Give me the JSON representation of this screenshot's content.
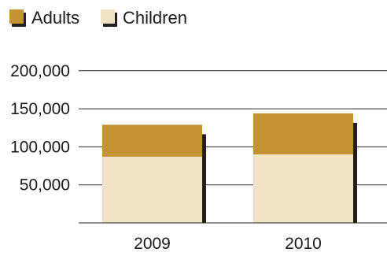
{
  "chart_data": {
    "type": "bar",
    "stacked": true,
    "categories": [
      "2009",
      "2010"
    ],
    "series": [
      {
        "name": "Children",
        "values": [
          87000,
          90000
        ],
        "color": "#f0e2c5"
      },
      {
        "name": "Adults",
        "values": [
          42000,
          54000
        ],
        "color": "#c29233"
      }
    ],
    "ylim": [
      0,
      200000
    ],
    "yticks": [
      50000,
      100000,
      150000,
      200000
    ],
    "ytick_labels": [
      "50,000",
      "100,000",
      "150,000",
      "200,000"
    ],
    "grid": true,
    "legend_position": "top-left",
    "shadow_color": "#231f1c",
    "grid_color": "#2b2b2b"
  }
}
